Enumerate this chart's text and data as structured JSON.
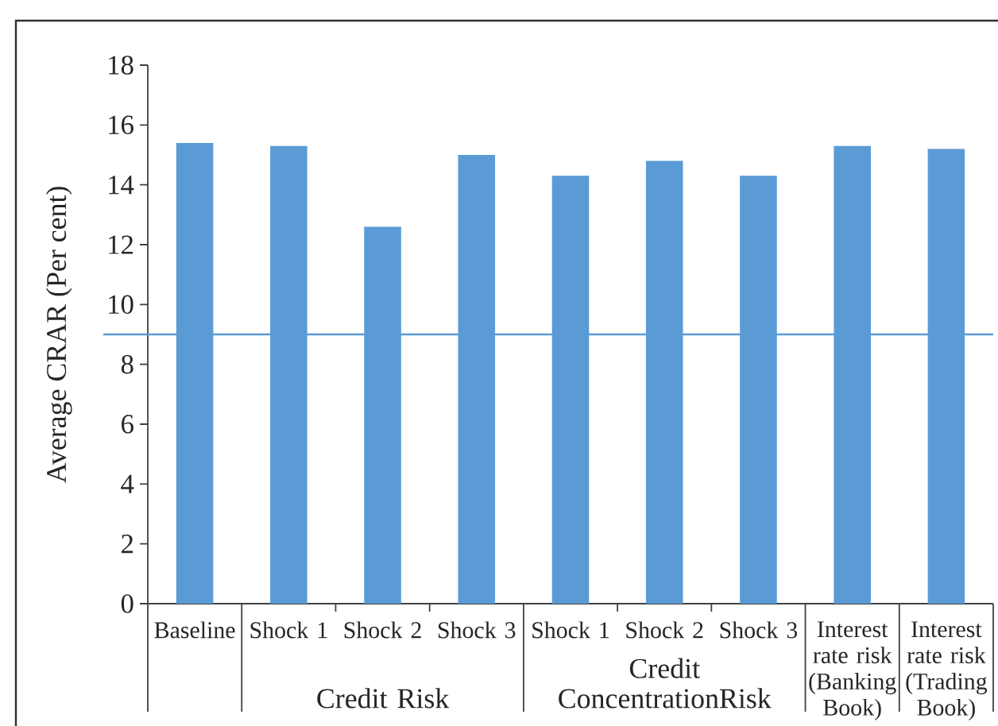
{
  "chart_data": {
    "type": "bar",
    "categories": [
      "Baseline",
      "Shock 1",
      "Shock 2",
      "Shock 3",
      "Shock 1",
      "Shock 2",
      "Shock 3",
      "Interest rate risk (Banking Book)",
      "Interest rate risk (Trading Book)"
    ],
    "values": [
      15.4,
      15.3,
      12.6,
      15.0,
      14.3,
      14.8,
      14.3,
      15.3,
      15.2
    ],
    "color": "#5b9bd5",
    "ylabel": "Average CRAR (Per cent)",
    "ylim": [
      0,
      18
    ],
    "yticks": [
      0,
      2,
      4,
      6,
      8,
      10,
      12,
      14,
      16,
      18
    ],
    "ref_lines": [
      {
        "axis": "y",
        "value": 9,
        "color": "#5b9bd5"
      }
    ],
    "annotations": [
      "Credit Risk",
      "Credit ConcentrationRisk"
    ]
  }
}
